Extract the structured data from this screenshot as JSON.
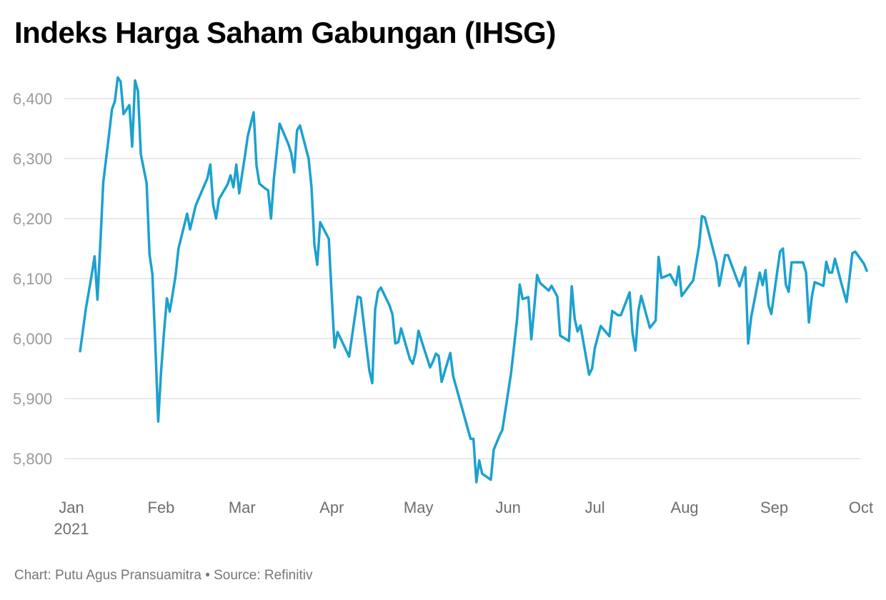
{
  "title": "Indeks Harga Saham Gabungan (IHSG)",
  "credit": "Chart: Putu Agus Pransuamitra • Source: Refinitiv",
  "line_color": "#1ba1cf",
  "chart_data": {
    "type": "line",
    "title": "Indeks Harga Saham Gabungan (IHSG)",
    "x_tick_labels": [
      "Jan",
      "Feb",
      "Mar",
      "Apr",
      "May",
      "Jun",
      "Jul",
      "Aug",
      "Sep",
      "Oct"
    ],
    "x_tick_year": "2021",
    "x_tick_dates": [
      "2021-01-01",
      "2021-02-01",
      "2021-03-01",
      "2021-04-01",
      "2021-05-01",
      "2021-06-01",
      "2021-07-01",
      "2021-08-01",
      "2021-09-01",
      "2021-10-01"
    ],
    "y_tick_labels": [
      "5,800",
      "5,900",
      "6,000",
      "6,100",
      "6,200",
      "6,300",
      "6,400"
    ],
    "y_ticks": [
      5800,
      5900,
      6000,
      6100,
      6200,
      6300,
      6400
    ],
    "xlim": [
      "2021-01-01",
      "2021-10-01"
    ],
    "ylim": [
      5755,
      6445
    ],
    "grid": true,
    "series": [
      {
        "values": [
          [
            "2021-01-04",
            5979
          ],
          [
            "2021-01-06",
            6050
          ],
          [
            "2021-01-08",
            6106
          ],
          [
            "2021-01-09",
            6137
          ],
          [
            "2021-01-10",
            6065
          ],
          [
            "2021-01-11",
            6160
          ],
          [
            "2021-01-12",
            6260
          ],
          [
            "2021-01-14",
            6340
          ],
          [
            "2021-01-15",
            6382
          ],
          [
            "2021-01-16",
            6395
          ],
          [
            "2021-01-17",
            6435
          ],
          [
            "2021-01-18",
            6428
          ],
          [
            "2021-01-19",
            6374
          ],
          [
            "2021-01-21",
            6389
          ],
          [
            "2021-01-22",
            6320
          ],
          [
            "2021-01-23",
            6430
          ],
          [
            "2021-01-24",
            6412
          ],
          [
            "2021-01-25",
            6307
          ],
          [
            "2021-01-27",
            6259
          ],
          [
            "2021-01-28",
            6140
          ],
          [
            "2021-01-29",
            6107
          ],
          [
            "2021-01-30",
            5990
          ],
          [
            "2021-01-31",
            5862
          ],
          [
            "2021-02-01",
            5946
          ],
          [
            "2021-02-02",
            6010
          ],
          [
            "2021-02-03",
            6067
          ],
          [
            "2021-02-04",
            6045
          ],
          [
            "2021-02-05",
            6075
          ],
          [
            "2021-02-06",
            6105
          ],
          [
            "2021-02-07",
            6150
          ],
          [
            "2021-02-10",
            6208
          ],
          [
            "2021-02-11",
            6182
          ],
          [
            "2021-02-13",
            6222
          ],
          [
            "2021-02-17",
            6267
          ],
          [
            "2021-02-18",
            6290
          ],
          [
            "2021-02-19",
            6223
          ],
          [
            "2021-02-20",
            6200
          ],
          [
            "2021-02-21",
            6232
          ],
          [
            "2021-02-24",
            6257
          ],
          [
            "2021-02-25",
            6272
          ],
          [
            "2021-02-26",
            6252
          ],
          [
            "2021-02-27",
            6290
          ],
          [
            "2021-02-28",
            6242
          ],
          [
            "2021-03-02",
            6305
          ],
          [
            "2021-03-03",
            6338
          ],
          [
            "2021-03-05",
            6377
          ],
          [
            "2021-03-06",
            6288
          ],
          [
            "2021-03-07",
            6258
          ],
          [
            "2021-03-09",
            6250
          ],
          [
            "2021-03-10",
            6247
          ],
          [
            "2021-03-11",
            6200
          ],
          [
            "2021-03-12",
            6266
          ],
          [
            "2021-03-14",
            6358
          ],
          [
            "2021-03-17",
            6324
          ],
          [
            "2021-03-18",
            6309
          ],
          [
            "2021-03-19",
            6277
          ],
          [
            "2021-03-20",
            6347
          ],
          [
            "2021-03-21",
            6355
          ],
          [
            "2021-03-24",
            6300
          ],
          [
            "2021-03-25",
            6252
          ],
          [
            "2021-03-26",
            6157
          ],
          [
            "2021-03-27",
            6123
          ],
          [
            "2021-03-28",
            6194
          ],
          [
            "2021-03-31",
            6166
          ],
          [
            "2021-04-01",
            6070
          ],
          [
            "2021-04-02",
            5985
          ],
          [
            "2021-04-03",
            6011
          ],
          [
            "2021-04-07",
            5970
          ],
          [
            "2021-04-10",
            6070
          ],
          [
            "2021-04-11",
            6068
          ],
          [
            "2021-04-14",
            5947
          ],
          [
            "2021-04-15",
            5926
          ],
          [
            "2021-04-16",
            6048
          ],
          [
            "2021-04-17",
            6078
          ],
          [
            "2021-04-18",
            6085
          ],
          [
            "2021-04-21",
            6055
          ],
          [
            "2021-04-22",
            6040
          ],
          [
            "2021-04-23",
            5992
          ],
          [
            "2021-04-24",
            5994
          ],
          [
            "2021-04-25",
            6017
          ],
          [
            "2021-04-28",
            5966
          ],
          [
            "2021-04-29",
            5958
          ],
          [
            "2021-04-30",
            5977
          ],
          [
            "2021-05-01",
            6013
          ],
          [
            "2021-05-02",
            5997
          ],
          [
            "2021-05-05",
            5952
          ],
          [
            "2021-05-06",
            5962
          ],
          [
            "2021-05-07",
            5975
          ],
          [
            "2021-05-08",
            5971
          ],
          [
            "2021-05-09",
            5928
          ],
          [
            "2021-05-12",
            5976
          ],
          [
            "2021-05-13",
            5937
          ],
          [
            "2021-05-19",
            5833
          ],
          [
            "2021-05-20",
            5833
          ],
          [
            "2021-05-21",
            5761
          ],
          [
            "2021-05-22",
            5797
          ],
          [
            "2021-05-23",
            5775
          ],
          [
            "2021-05-26",
            5765
          ],
          [
            "2021-05-27",
            5815
          ],
          [
            "2021-05-29",
            5838
          ],
          [
            "2021-05-30",
            5848
          ],
          [
            "2021-06-02",
            5942
          ],
          [
            "2021-06-04",
            6028
          ],
          [
            "2021-06-05",
            6090
          ],
          [
            "2021-06-06",
            6066
          ],
          [
            "2021-06-08",
            6069
          ],
          [
            "2021-06-09",
            5999
          ],
          [
            "2021-06-10",
            6050
          ],
          [
            "2021-06-11",
            6106
          ],
          [
            "2021-06-12",
            6093
          ],
          [
            "2021-06-15",
            6080
          ],
          [
            "2021-06-16",
            6088
          ],
          [
            "2021-06-18",
            6070
          ],
          [
            "2021-06-19",
            6005
          ],
          [
            "2021-06-22",
            5996
          ],
          [
            "2021-06-23",
            6087
          ],
          [
            "2021-06-24",
            6033
          ],
          [
            "2021-06-25",
            6012
          ],
          [
            "2021-06-26",
            6022
          ],
          [
            "2021-06-29",
            5940
          ],
          [
            "2021-06-30",
            5950
          ],
          [
            "2021-07-01",
            5985
          ],
          [
            "2021-07-03",
            6021
          ],
          [
            "2021-07-06",
            6004
          ],
          [
            "2021-07-07",
            6046
          ],
          [
            "2021-07-09",
            6039
          ],
          [
            "2021-07-10",
            6039
          ],
          [
            "2021-07-13",
            6077
          ],
          [
            "2021-07-14",
            6010
          ],
          [
            "2021-07-15",
            5980
          ],
          [
            "2021-07-16",
            6045
          ],
          [
            "2021-07-17",
            6071
          ],
          [
            "2021-07-20",
            6018
          ],
          [
            "2021-07-22",
            6030
          ],
          [
            "2021-07-23",
            6136
          ],
          [
            "2021-07-24",
            6101
          ],
          [
            "2021-07-27",
            6107
          ],
          [
            "2021-07-29",
            6089
          ],
          [
            "2021-07-30",
            6120
          ],
          [
            "2021-07-31",
            6071
          ],
          [
            "2021-08-04",
            6097
          ],
          [
            "2021-08-06",
            6154
          ],
          [
            "2021-08-07",
            6204
          ],
          [
            "2021-08-08",
            6202
          ],
          [
            "2021-08-12",
            6127
          ],
          [
            "2021-08-13",
            6088
          ],
          [
            "2021-08-15",
            6139
          ],
          [
            "2021-08-16",
            6139
          ],
          [
            "2021-08-20",
            6087
          ],
          [
            "2021-08-22",
            6119
          ],
          [
            "2021-08-23",
            5992
          ],
          [
            "2021-08-24",
            6035
          ],
          [
            "2021-08-27",
            6110
          ],
          [
            "2021-08-28",
            6089
          ],
          [
            "2021-08-29",
            6114
          ],
          [
            "2021-08-30",
            6056
          ],
          [
            "2021-08-31",
            6041
          ],
          [
            "2021-09-02",
            6110
          ],
          [
            "2021-09-03",
            6145
          ],
          [
            "2021-09-04",
            6150
          ],
          [
            "2021-09-05",
            6090
          ],
          [
            "2021-09-06",
            6078
          ],
          [
            "2021-09-07",
            6127
          ],
          [
            "2021-09-11",
            6127
          ],
          [
            "2021-09-12",
            6110
          ],
          [
            "2021-09-13",
            6027
          ],
          [
            "2021-09-14",
            6070
          ],
          [
            "2021-09-15",
            6094
          ],
          [
            "2021-09-18",
            6088
          ],
          [
            "2021-09-19",
            6128
          ],
          [
            "2021-09-20",
            6110
          ],
          [
            "2021-09-21",
            6110
          ],
          [
            "2021-09-22",
            6133
          ],
          [
            "2021-09-24",
            6096
          ],
          [
            "2021-09-26",
            6061
          ],
          [
            "2021-09-27",
            6100
          ],
          [
            "2021-09-28",
            6142
          ],
          [
            "2021-09-29",
            6145
          ],
          [
            "2021-10-02",
            6125
          ],
          [
            "2021-10-03",
            6113
          ]
        ]
      }
    ]
  }
}
